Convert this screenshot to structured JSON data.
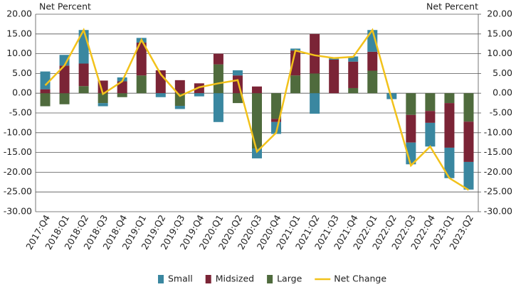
{
  "chart_data": {
    "type": "bar",
    "y_label": "Net Percent",
    "y2_label": "Net Percent",
    "categories": [
      "2017:Q4",
      "2018:Q1",
      "2018:Q2",
      "2018:Q3",
      "2018:Q4",
      "2019:Q1",
      "2019:Q2",
      "2019:Q3",
      "2019:Q4",
      "2020:Q1",
      "2020:Q2",
      "2020:Q3",
      "2020:Q4",
      "2021:Q1",
      "2021:Q2",
      "2021:Q3",
      "2021:Q4",
      "2022:Q1",
      "2022:Q2",
      "2022:Q3",
      "2022:Q4",
      "2023:Q1",
      "2023:Q2"
    ],
    "series": [
      {
        "name": "Small",
        "color": "#3a87a0",
        "values": [
          4.5,
          2.7,
          8.5,
          -0.8,
          1,
          1.2,
          -1,
          -0.8,
          -0.8,
          -7.3,
          1.3,
          -2.5,
          -3,
          0.5,
          -5.2,
          0.5,
          1.3,
          5.5,
          -1.5,
          -5.5,
          -6,
          -7.7,
          -7
        ]
      },
      {
        "name": "Midsized",
        "color": "#7b2436",
        "values": [
          1,
          7,
          5.7,
          3.2,
          3,
          8.3,
          5.8,
          3.3,
          2.5,
          2.7,
          4.5,
          1.7,
          -0.8,
          6.3,
          10,
          8.5,
          6.7,
          4.8,
          0,
          -7,
          -3,
          -11.3,
          -10.2
        ]
      },
      {
        "name": "Large",
        "color": "#4f6b3d",
        "values": [
          -3.3,
          -2.8,
          1.8,
          -2.5,
          -1,
          4.5,
          0,
          -3.2,
          0,
          7.3,
          -2.5,
          -14,
          -6.5,
          4.5,
          5,
          0,
          1.3,
          5.7,
          0,
          -5.5,
          -4.5,
          -2.5,
          -7.2
        ]
      },
      {
        "name": "Net Change",
        "type": "line",
        "color": "#f2c21b",
        "values": [
          2,
          7,
          16,
          -0.2,
          3,
          13.5,
          4.8,
          -0.7,
          1.5,
          2.5,
          3.3,
          -14.8,
          -10,
          10.8,
          9.6,
          8.9,
          9.2,
          16,
          -1.5,
          -18.3,
          -13.5,
          -21.5,
          -24.5
        ]
      }
    ],
    "ylim": [
      -30,
      20
    ],
    "yticks": [
      {
        "value": -30,
        "label": "-30.00"
      },
      {
        "value": -25,
        "label": "-25.00"
      },
      {
        "value": -20,
        "label": "-20.00"
      },
      {
        "value": -15,
        "label": "-15.00"
      },
      {
        "value": -10,
        "label": "-10.00"
      },
      {
        "value": -5,
        "label": "-5.00"
      },
      {
        "value": 0,
        "label": "0.00"
      },
      {
        "value": 5,
        "label": "5.00"
      },
      {
        "value": 10,
        "label": "10.00"
      },
      {
        "value": 15,
        "label": "15.00"
      },
      {
        "value": 20,
        "label": "20.00"
      }
    ],
    "y2lim": [
      -30,
      20
    ],
    "y2ticks": [
      {
        "value": -30,
        "label": "-30.00"
      },
      {
        "value": -25,
        "label": "-25.00"
      },
      {
        "value": -20,
        "label": "-20.00"
      },
      {
        "value": -15,
        "label": "-15.00"
      },
      {
        "value": -10,
        "label": "-10.00"
      },
      {
        "value": -5,
        "label": "-5.00"
      },
      {
        "value": 0,
        "label": "0.00"
      },
      {
        "value": 5,
        "label": "5.00"
      },
      {
        "value": 10,
        "label": "10.00"
      },
      {
        "value": 15,
        "label": "15.00"
      },
      {
        "value": 20,
        "label": "20.00"
      }
    ],
    "grid": true,
    "legend": "bottom"
  }
}
